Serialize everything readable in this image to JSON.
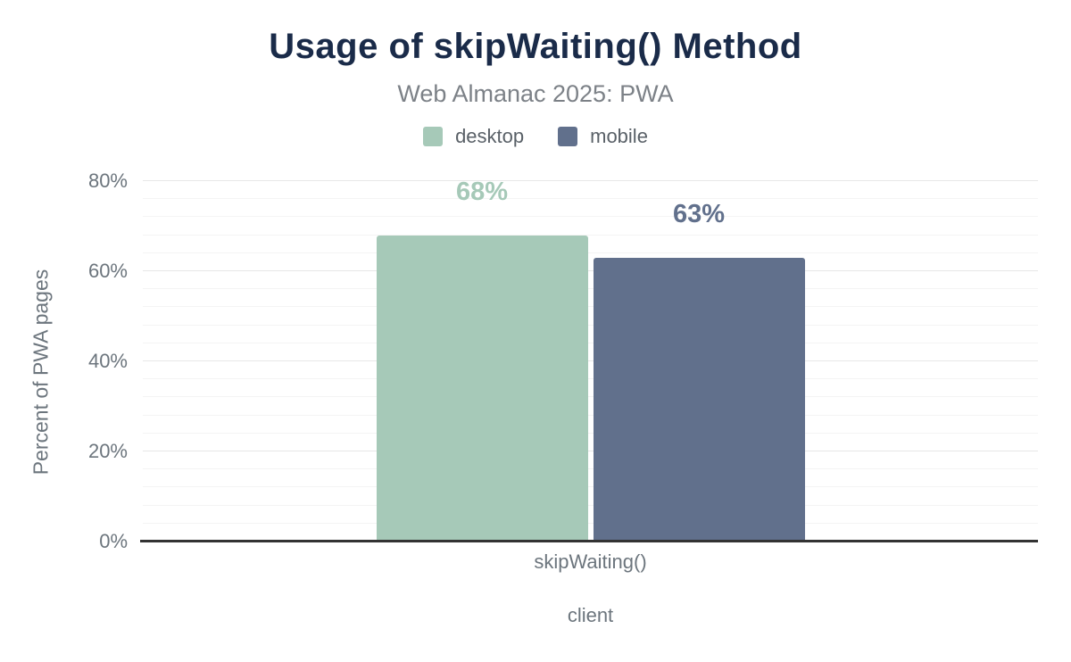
{
  "chart_data": {
    "type": "bar",
    "title": "Usage of skipWaiting() Method",
    "subtitle": "Web Almanac 2025: PWA",
    "categories": [
      "skipWaiting()"
    ],
    "series": [
      {
        "name": "desktop",
        "color": "#a6c9b8",
        "values": [
          68
        ],
        "value_labels": [
          "68%"
        ]
      },
      {
        "name": "mobile",
        "color": "#61708c",
        "values": [
          63
        ],
        "value_labels": [
          "63%"
        ]
      }
    ],
    "xlabel": "client",
    "ylabel": "Percent of PWA pages",
    "ylim": [
      0,
      80
    ],
    "yticks": [
      0,
      20,
      40,
      60,
      80
    ],
    "ytick_labels": [
      "0%",
      "20%",
      "40%",
      "60%",
      "80%"
    ],
    "minor_grid_step_percent": 4,
    "grid": true,
    "legend_position": "top"
  },
  "colors": {
    "background": "#ffffff",
    "title": "#1a2b49",
    "subtitle": "#7c8187",
    "legend_label": "#596067",
    "tick_label": "#6c757d",
    "axis_title": "#6c757d",
    "axis_line": "#333333",
    "gridline_major": "#e7e7e7",
    "gridline_minor": "#f4f4f4"
  }
}
